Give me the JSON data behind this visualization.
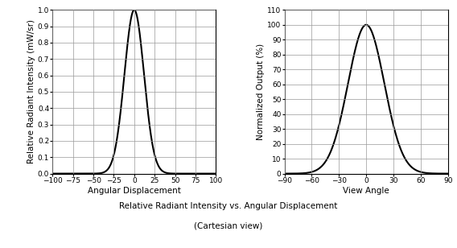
{
  "left_chart": {
    "xlabel": "Angular Displacement",
    "ylabel": "Relative Radiant Intensity (mW/sr)",
    "xlim": [
      -100,
      100
    ],
    "ylim": [
      0,
      1.0
    ],
    "xticks": [
      -100,
      -75,
      -50,
      -25,
      0,
      25,
      50,
      75,
      100
    ],
    "yticks": [
      0,
      0.1,
      0.2,
      0.3,
      0.4,
      0.5,
      0.6,
      0.7,
      0.8,
      0.9,
      1.0
    ],
    "curve_sigma": 12.0
  },
  "right_chart": {
    "xlabel": "View Angle",
    "ylabel": "Normalized Output (%)",
    "xlim": [
      -90,
      90
    ],
    "ylim": [
      0,
      110
    ],
    "xticks": [
      -90,
      -60,
      -30,
      0,
      30,
      60,
      90
    ],
    "yticks": [
      0,
      10,
      20,
      30,
      40,
      50,
      60,
      70,
      80,
      90,
      100,
      110
    ],
    "curve_sigma": 20.0
  },
  "caption_line1": "Relative Radiant Intensity vs. Angular Displacement",
  "caption_line2": "(Cartesian view)",
  "line_color": "#000000",
  "line_width": 1.5,
  "grid_color": "#999999",
  "bg_color": "#ffffff",
  "tick_fontsize": 6.5,
  "label_fontsize": 7.5,
  "caption_fontsize": 7.5
}
